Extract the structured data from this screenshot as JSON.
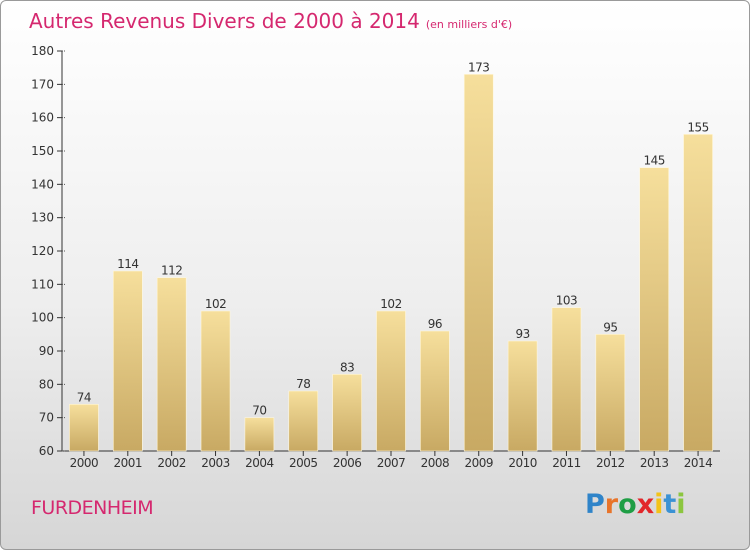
{
  "title": "Autres Revenus Divers de 2000 à 2014",
  "subtitle": "(en milliers d'€)",
  "place": "FURDENHEIM",
  "logo": {
    "text": "Proxiti",
    "letter_colors": [
      "#2f84c9",
      "#e8742a",
      "#1f9e45",
      "#e2262a",
      "#f3c319",
      "#3b92d4",
      "#8cc63f"
    ]
  },
  "colors": {
    "title": "#d5286f",
    "bar_top": "#f6df9c",
    "bar_bottom": "#c8a963",
    "axis": "#333333",
    "grid": "#555555"
  },
  "chart_data": {
    "type": "bar",
    "title": "Autres Revenus Divers de 2000 à 2014",
    "subtitle": "(en milliers d'€)",
    "categories": [
      "2000",
      "2001",
      "2002",
      "2003",
      "2004",
      "2005",
      "2006",
      "2007",
      "2008",
      "2009",
      "2010",
      "2011",
      "2012",
      "2013",
      "2014"
    ],
    "values": [
      74,
      114,
      112,
      102,
      70,
      78,
      83,
      102,
      96,
      173,
      93,
      103,
      95,
      145,
      155
    ],
    "ylim": [
      60,
      180
    ],
    "yticks": [
      60,
      70,
      80,
      90,
      100,
      110,
      120,
      130,
      140,
      150,
      160,
      170,
      180
    ],
    "grid": false,
    "data_labels": true,
    "xlabel": "",
    "ylabel": ""
  }
}
